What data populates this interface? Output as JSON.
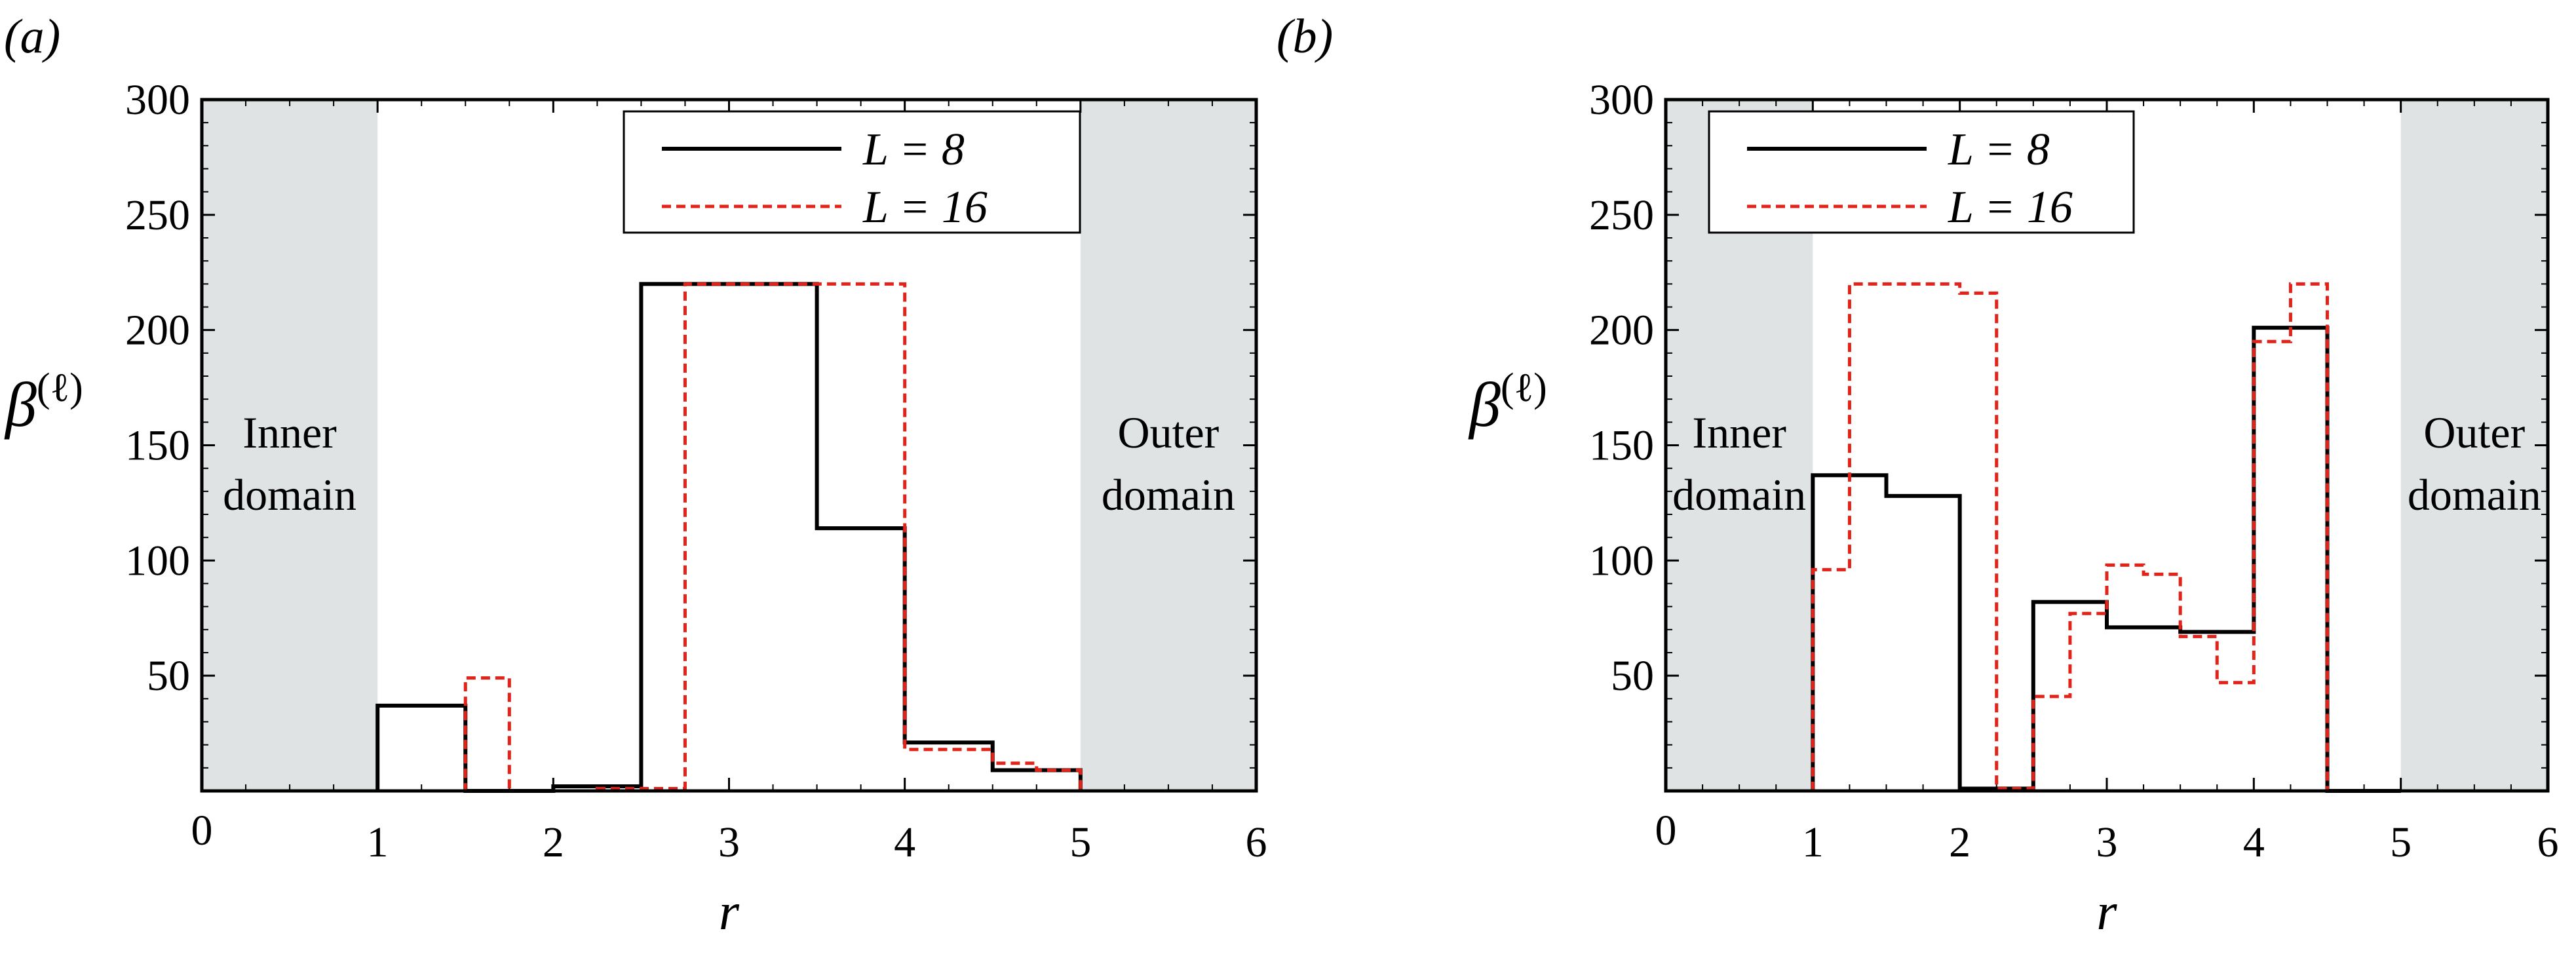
{
  "chart_data": [
    {
      "panel_label": "(a)",
      "type": "line",
      "step": true,
      "xlabel": "r",
      "ylabel": "β^(ℓ)",
      "xlim": [
        0,
        6
      ],
      "ylim": [
        0,
        300
      ],
      "xticks": [
        {
          "value": 0,
          "label": "0"
        },
        {
          "value": 1,
          "label": "1"
        },
        {
          "value": 2,
          "label": "2"
        },
        {
          "value": 3,
          "label": "3"
        },
        {
          "value": 4,
          "label": "4"
        },
        {
          "value": 5,
          "label": "5"
        },
        {
          "value": 6,
          "label": "6"
        }
      ],
      "yticks": [
        {
          "value": 50,
          "label": "50"
        },
        {
          "value": 100,
          "label": "100"
        },
        {
          "value": 150,
          "label": "150"
        },
        {
          "value": 200,
          "label": "200"
        },
        {
          "value": 250,
          "label": "250"
        },
        {
          "value": 300,
          "label": "300"
        }
      ],
      "shaded_regions": [
        {
          "x0": 0,
          "x1": 1,
          "label_lines": [
            "Inner",
            "domain"
          ],
          "color": "#dfe3e3"
        },
        {
          "x0": 5,
          "x1": 6,
          "label_lines": [
            "Outer",
            "domain"
          ],
          "color": "#dfe3e3"
        }
      ],
      "legend": "top-right",
      "series": [
        {
          "name": "L = 8",
          "color": "#000000",
          "dash": "solid",
          "edges": [
            1.0,
            1.5,
            2.0,
            2.5,
            3.0,
            3.5,
            4.0,
            4.5,
            5.0
          ],
          "values": [
            37,
            0,
            2,
            220,
            220,
            114,
            21,
            9
          ]
        },
        {
          "name": "L = 16",
          "color": "#e2231a",
          "dash": "dashed",
          "edges": [
            1.0,
            1.25,
            1.5,
            1.75,
            2.0,
            2.25,
            2.5,
            2.75,
            3.0,
            3.25,
            3.5,
            3.75,
            4.0,
            4.25,
            4.5,
            4.75,
            5.0
          ],
          "values": [
            0,
            0,
            49,
            0,
            0,
            1,
            1,
            220,
            220,
            220,
            220,
            220,
            18,
            18,
            12,
            9
          ]
        }
      ]
    },
    {
      "panel_label": "(b)",
      "type": "line",
      "step": true,
      "xlabel": "r",
      "ylabel": "β^(ℓ)",
      "xlim": [
        0,
        6
      ],
      "ylim": [
        0,
        300
      ],
      "xticks": [
        {
          "value": 0,
          "label": "0"
        },
        {
          "value": 1,
          "label": "1"
        },
        {
          "value": 2,
          "label": "2"
        },
        {
          "value": 3,
          "label": "3"
        },
        {
          "value": 4,
          "label": "4"
        },
        {
          "value": 5,
          "label": "5"
        },
        {
          "value": 6,
          "label": "6"
        }
      ],
      "yticks": [
        {
          "value": 50,
          "label": "50"
        },
        {
          "value": 100,
          "label": "100"
        },
        {
          "value": 150,
          "label": "150"
        },
        {
          "value": 200,
          "label": "200"
        },
        {
          "value": 250,
          "label": "250"
        },
        {
          "value": 300,
          "label": "300"
        }
      ],
      "shaded_regions": [
        {
          "x0": 0,
          "x1": 1,
          "label_lines": [
            "Inner",
            "domain"
          ],
          "color": "#dfe3e3"
        },
        {
          "x0": 5,
          "x1": 6,
          "label_lines": [
            "Outer",
            "domain"
          ],
          "color": "#dfe3e3"
        }
      ],
      "legend": "top-left",
      "series": [
        {
          "name": "L = 8",
          "color": "#000000",
          "dash": "solid",
          "edges": [
            1.0,
            1.5,
            2.0,
            2.5,
            3.0,
            3.5,
            4.0,
            4.5,
            5.0
          ],
          "values": [
            137,
            128,
            1,
            82,
            71,
            69,
            201,
            0
          ]
        },
        {
          "name": "L = 16",
          "color": "#e2231a",
          "dash": "dashed",
          "edges": [
            1.0,
            1.25,
            1.5,
            1.75,
            2.0,
            2.25,
            2.5,
            2.75,
            3.0,
            3.25,
            3.5,
            3.75,
            4.0,
            4.25,
            4.5,
            4.75,
            5.0
          ],
          "values": [
            96,
            220,
            220,
            220,
            216,
            1,
            41,
            77,
            98,
            94,
            67,
            47,
            195,
            220,
            0,
            0
          ]
        }
      ]
    }
  ]
}
